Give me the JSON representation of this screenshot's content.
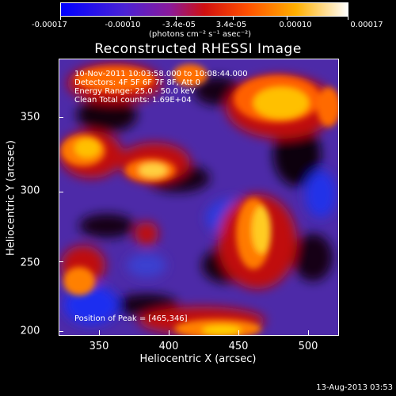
{
  "colorbar": {
    "tick_labels": [
      "-0.00017",
      "-0.00010",
      "-3.4e-05",
      "3.4e-05",
      "0.00010",
      "0.00017"
    ],
    "units": "(photons cm⁻² s⁻¹ asec⁻²)",
    "colors": [
      "#1010ff",
      "#6a2fbf",
      "#c01010",
      "#ff5a00",
      "#ffd21a",
      "#ffffe0"
    ]
  },
  "title": "Reconstructed RHESSI Image",
  "info_lines": [
    "10-Nov-2011 10:03:58.000 to 10:08:44.000",
    "Detectors: 4F 5F 6F 7F 8F, Att 0",
    "Energy Range: 25.0 - 50.0 keV",
    "Clean    Total counts: 1.69E+04"
  ],
  "peak": "Position of Peak = [465,346]",
  "x_axis": {
    "title": "Heliocentric X (arcsec)",
    "tick_labels": [
      "350",
      "400",
      "450",
      "500"
    ]
  },
  "y_axis": {
    "title": "Heliocentric Y (arcsec)",
    "tick_labels": [
      "200",
      "250",
      "300",
      "350"
    ]
  },
  "date_stamp": "13-Aug-2013 03:53"
}
